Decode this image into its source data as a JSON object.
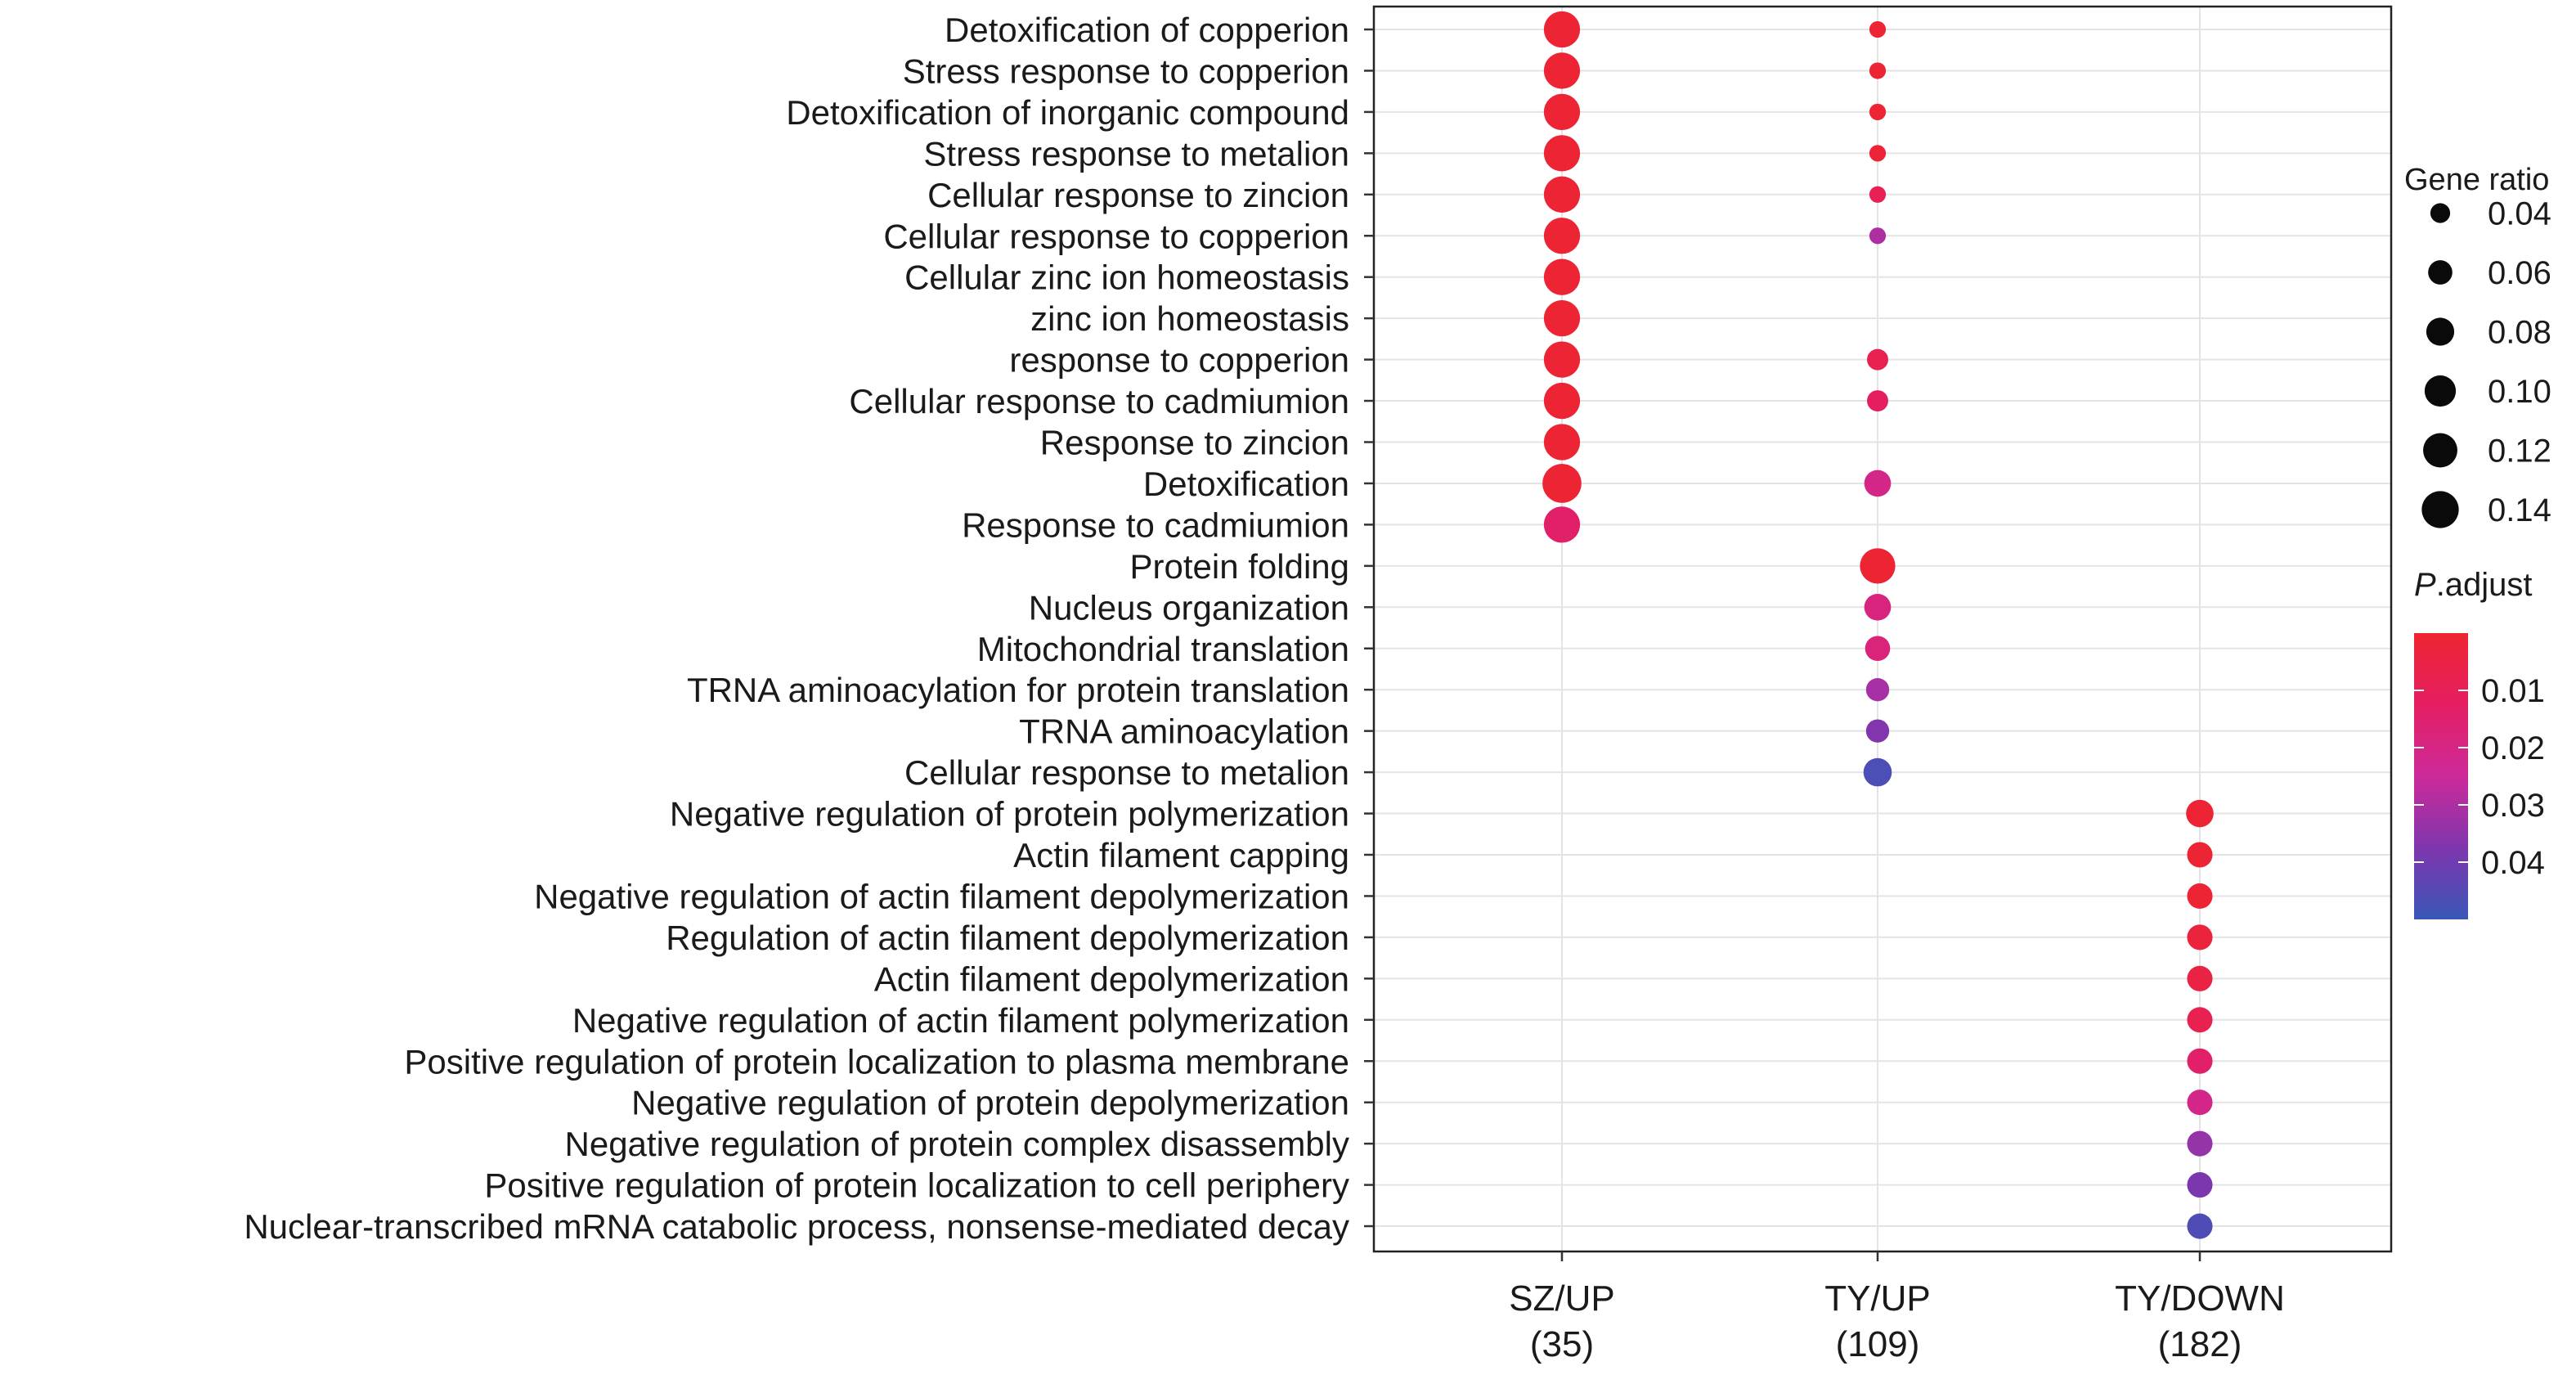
{
  "chart_data": {
    "type": "scatter",
    "subtype": "dot-plot",
    "title": "",
    "xlabel": "",
    "ylabel": "",
    "grid": true,
    "legend_placement": "right",
    "groups": [
      {
        "name": "SZ/UP",
        "count": "(35)"
      },
      {
        "name": "TY/UP",
        "count": "(109)"
      },
      {
        "name": "TY/DOWN",
        "count": "(182)"
      }
    ],
    "terms": [
      "Detoxification of copperion",
      "Stress response to copperion",
      "Detoxification of inorganic compound",
      "Stress response to metalion",
      "Cellular response to zincion",
      "Cellular response to copperion",
      "Cellular zinc ion homeostasis",
      "zinc ion homeostasis",
      "response to copperion",
      "Cellular response to cadmiumion",
      "Response to zincion",
      "Detoxification",
      "Response to cadmiumion",
      "Protein folding",
      "Nucleus organization",
      "Mitochondrial translation",
      "TRNA aminoacylation for protein translation",
      "TRNA aminoacylation",
      "Cellular response to metalion",
      "Negative regulation of protein polymerization",
      "Actin filament capping",
      "Negative regulation of actin filament depolymerization",
      "Regulation of actin filament depolymerization",
      "Actin filament depolymerization",
      "Negative regulation of actin filament polymerization",
      "Positive regulation of protein localization to plasma membrane",
      "Negative regulation of protein depolymerization",
      "Negative regulation of protein complex disassembly",
      "Positive regulation of protein localization to cell periphery",
      "Nuclear-transcribed mRNA catabolic process, nonsense-mediated decay"
    ],
    "points": [
      {
        "group": 0,
        "term": 0,
        "gene_ratio": 0.134,
        "p_adjust": 0.001
      },
      {
        "group": 0,
        "term": 1,
        "gene_ratio": 0.134,
        "p_adjust": 0.001
      },
      {
        "group": 0,
        "term": 2,
        "gene_ratio": 0.134,
        "p_adjust": 0.001
      },
      {
        "group": 0,
        "term": 3,
        "gene_ratio": 0.134,
        "p_adjust": 0.001
      },
      {
        "group": 0,
        "term": 4,
        "gene_ratio": 0.134,
        "p_adjust": 0.001
      },
      {
        "group": 0,
        "term": 5,
        "gene_ratio": 0.134,
        "p_adjust": 0.001
      },
      {
        "group": 0,
        "term": 6,
        "gene_ratio": 0.134,
        "p_adjust": 0.001
      },
      {
        "group": 0,
        "term": 7,
        "gene_ratio": 0.134,
        "p_adjust": 0.001
      },
      {
        "group": 0,
        "term": 8,
        "gene_ratio": 0.134,
        "p_adjust": 0.001
      },
      {
        "group": 0,
        "term": 9,
        "gene_ratio": 0.134,
        "p_adjust": 0.001
      },
      {
        "group": 0,
        "term": 10,
        "gene_ratio": 0.134,
        "p_adjust": 0.001
      },
      {
        "group": 0,
        "term": 11,
        "gene_ratio": 0.155,
        "p_adjust": 0.001
      },
      {
        "group": 0,
        "term": 12,
        "gene_ratio": 0.134,
        "p_adjust": 0.014
      },
      {
        "group": 1,
        "term": 0,
        "gene_ratio": 0.028,
        "p_adjust": 0.001
      },
      {
        "group": 1,
        "term": 1,
        "gene_ratio": 0.028,
        "p_adjust": 0.001
      },
      {
        "group": 1,
        "term": 2,
        "gene_ratio": 0.028,
        "p_adjust": 0.001
      },
      {
        "group": 1,
        "term": 3,
        "gene_ratio": 0.028,
        "p_adjust": 0.002
      },
      {
        "group": 1,
        "term": 4,
        "gene_ratio": 0.028,
        "p_adjust": 0.009
      },
      {
        "group": 1,
        "term": 5,
        "gene_ratio": 0.028,
        "p_adjust": 0.03
      },
      {
        "group": 1,
        "term": 8,
        "gene_ratio": 0.046,
        "p_adjust": 0.008
      },
      {
        "group": 1,
        "term": 9,
        "gene_ratio": 0.046,
        "p_adjust": 0.012
      },
      {
        "group": 1,
        "term": 11,
        "gene_ratio": 0.073,
        "p_adjust": 0.021
      },
      {
        "group": 1,
        "term": 13,
        "gene_ratio": 0.128,
        "p_adjust": 0.001
      },
      {
        "group": 1,
        "term": 14,
        "gene_ratio": 0.073,
        "p_adjust": 0.019
      },
      {
        "group": 1,
        "term": 15,
        "gene_ratio": 0.064,
        "p_adjust": 0.018
      },
      {
        "group": 1,
        "term": 16,
        "gene_ratio": 0.055,
        "p_adjust": 0.031
      },
      {
        "group": 1,
        "term": 17,
        "gene_ratio": 0.055,
        "p_adjust": 0.037
      },
      {
        "group": 1,
        "term": 18,
        "gene_ratio": 0.082,
        "p_adjust": 0.047
      },
      {
        "group": 2,
        "term": 19,
        "gene_ratio": 0.077,
        "p_adjust": 0.001
      },
      {
        "group": 2,
        "term": 20,
        "gene_ratio": 0.066,
        "p_adjust": 0.001
      },
      {
        "group": 2,
        "term": 21,
        "gene_ratio": 0.066,
        "p_adjust": 0.001
      },
      {
        "group": 2,
        "term": 22,
        "gene_ratio": 0.066,
        "p_adjust": 0.003
      },
      {
        "group": 2,
        "term": 23,
        "gene_ratio": 0.066,
        "p_adjust": 0.005
      },
      {
        "group": 2,
        "term": 24,
        "gene_ratio": 0.066,
        "p_adjust": 0.008
      },
      {
        "group": 2,
        "term": 25,
        "gene_ratio": 0.066,
        "p_adjust": 0.014
      },
      {
        "group": 2,
        "term": 26,
        "gene_ratio": 0.066,
        "p_adjust": 0.021
      },
      {
        "group": 2,
        "term": 27,
        "gene_ratio": 0.066,
        "p_adjust": 0.034
      },
      {
        "group": 2,
        "term": 28,
        "gene_ratio": 0.066,
        "p_adjust": 0.038
      },
      {
        "group": 2,
        "term": 29,
        "gene_ratio": 0.066,
        "p_adjust": 0.046
      }
    ],
    "size_legend": {
      "title": "Gene ratio",
      "values": [
        0.04,
        0.06,
        0.08,
        0.1,
        0.12,
        0.14
      ],
      "labels": [
        "0.04",
        "0.06",
        "0.08",
        "0.10",
        "0.12",
        "0.14"
      ]
    },
    "color_legend": {
      "title_italic": "P",
      "title_rest": ".adjust",
      "min": 0.0,
      "max": 0.05,
      "ticks": [
        0.01,
        0.02,
        0.03,
        0.04
      ],
      "tick_labels": [
        "0.01",
        "0.02",
        "0.03",
        "0.04"
      ],
      "colors": [
        "#ee2530",
        "#e51e62",
        "#cc2a9a",
        "#7f36ae",
        "#3a57b8"
      ]
    }
  }
}
